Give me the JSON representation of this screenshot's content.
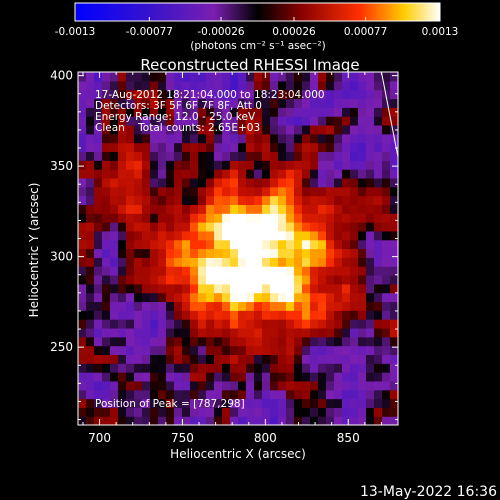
{
  "colorbar": {
    "tick_labels": [
      "-0.0013",
      "-0.00077",
      "-0.00026",
      "0.00026",
      "0.00077",
      "0.0013"
    ],
    "tick_values": [
      -0.0013,
      -0.00077,
      -0.00026,
      0.00026,
      0.00077,
      0.0013
    ],
    "range": [
      -0.0013,
      0.0013
    ],
    "unit_label": "(photons cm⁻² s⁻¹ asec⁻²)",
    "colors": {
      "negative_low": "#0000ff",
      "negative_mid": "#7a1fb0",
      "zero": "#000000",
      "pos_low": "#8a0000",
      "pos_mid": "#ff3000",
      "pos_high": "#ffcc00",
      "peak": "#ffffff"
    }
  },
  "chart_data": {
    "type": "heatmap",
    "title": "Reconstructed RHESSI Image",
    "xlabel": "Heliocentric X (arcsec)",
    "ylabel": "Heliocentric Y (arcsec)",
    "xlim": [
      687,
      880
    ],
    "ylim": [
      207,
      402
    ],
    "x_ticks": [
      700,
      750,
      800,
      850
    ],
    "y_ticks": [
      250,
      300,
      350,
      400
    ],
    "x_tick_labels": [
      "700",
      "750",
      "800",
      "850"
    ],
    "y_tick_labels": [
      "250",
      "300",
      "350",
      "400"
    ],
    "peak": {
      "x": 787,
      "y": 298
    },
    "limb_line": [
      [
        870,
        402
      ],
      [
        880,
        355
      ]
    ],
    "annotations": [
      "17-Aug-2012 18:21:04.000 to 18:23:04.000",
      "Detectors: 3F 5F 6F 7F 8F, Att 0",
      "Energy Range: 12.0 - 25.0 keV",
      "Clean    Total counts: 2.65E+03"
    ],
    "peak_label": "Position of Peak = [787,298]"
  },
  "footer": {
    "timestamp": "13-May-2022 16:36"
  }
}
